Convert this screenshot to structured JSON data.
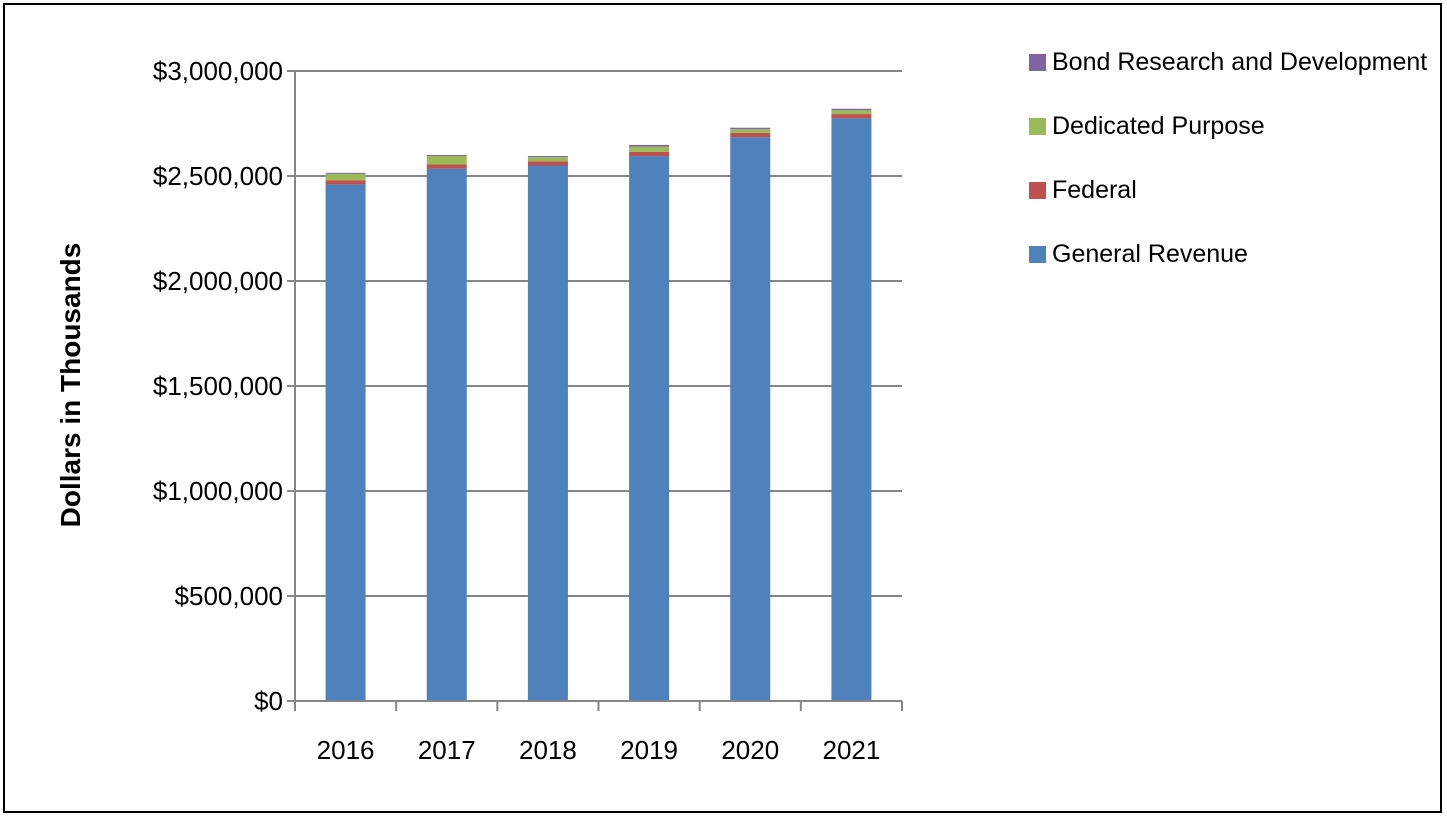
{
  "chart_data": {
    "type": "bar",
    "stacked": true,
    "categories": [
      "2016",
      "2017",
      "2018",
      "2019",
      "2020",
      "2021"
    ],
    "ylabel": "Dollars in Thousands",
    "xlabel": "",
    "ylim": [
      0,
      3000000
    ],
    "y_ticks": [
      0,
      500000,
      1000000,
      1500000,
      2000000,
      2500000,
      3000000
    ],
    "y_tick_labels": [
      "$0",
      "$500,000",
      "$1,000,000",
      "$1,500,000",
      "$2,000,000",
      "$2,500,000",
      "$3,000,000"
    ],
    "grid": true,
    "legend_position": "top-right",
    "series": [
      {
        "name": "General Revenue",
        "color": "#4F81BD",
        "values": [
          2460000,
          2535000,
          2550000,
          2595000,
          2685000,
          2775000
        ]
      },
      {
        "name": "Federal",
        "color": "#C0504D",
        "values": [
          20000,
          20000,
          20000,
          20000,
          20000,
          20000
        ]
      },
      {
        "name": "Dedicated Purpose",
        "color": "#9BBB59",
        "values": [
          30000,
          40000,
          20000,
          25000,
          18000,
          18000
        ]
      },
      {
        "name": "Bond Research and Development",
        "color": "#8064A2",
        "values": [
          5000,
          5000,
          5000,
          8000,
          7000,
          7000
        ]
      }
    ]
  }
}
